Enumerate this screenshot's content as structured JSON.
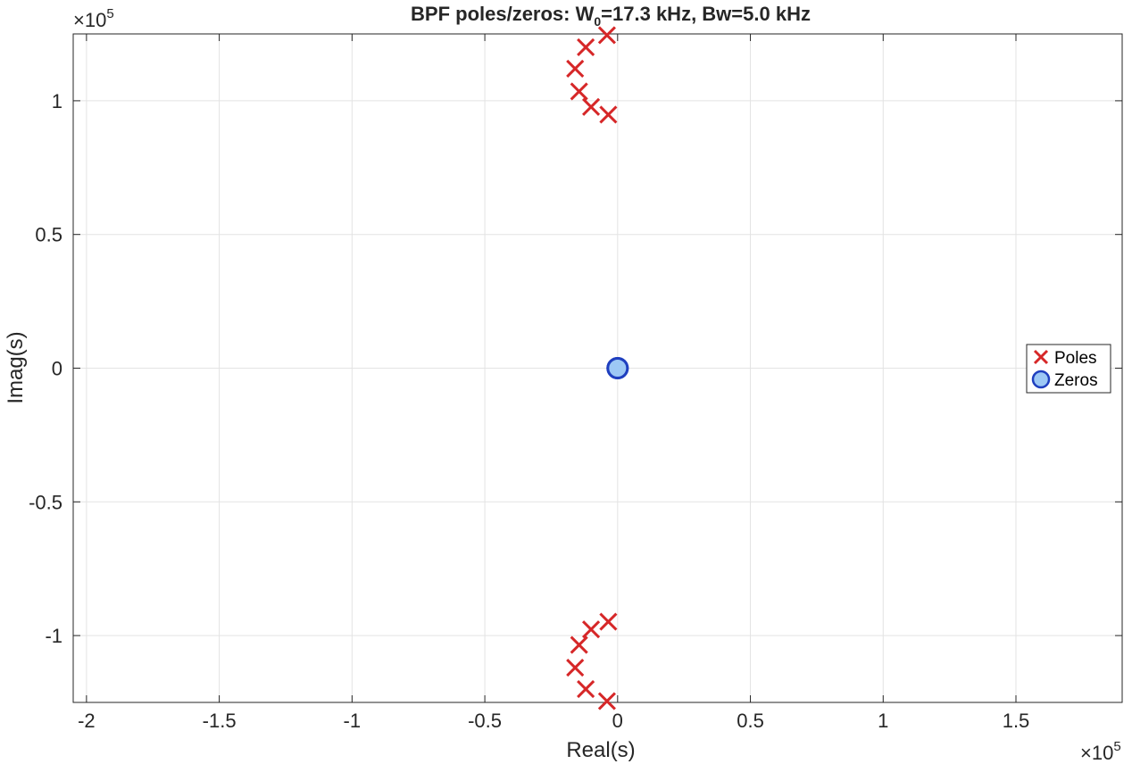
{
  "chart_data": {
    "type": "scatter",
    "title": {
      "prefix": "BPF  poles/zeros:  W",
      "subscript": "0",
      "suffix": "=17.3  kHz,  Bw=5.0  kHz"
    },
    "xlabel": "Real(s)",
    "ylabel": "Imag(s)",
    "x_exponent": {
      "base": "×10",
      "power": "5"
    },
    "y_exponent": {
      "base": "×10",
      "power": "5"
    },
    "xlim": [
      -2.05,
      1.9
    ],
    "ylim": [
      -1.25,
      1.25
    ],
    "x_ticks": [
      -2,
      -1.5,
      -1,
      -0.5,
      0,
      0.5,
      1,
      1.5
    ],
    "x_tick_labels": [
      "-2",
      "-1.5",
      "-1",
      "-0.5",
      "0",
      "0.5",
      "1",
      "1.5"
    ],
    "y_ticks": [
      -1,
      -0.5,
      0,
      0.5,
      1
    ],
    "y_tick_labels": [
      "-1",
      "-0.5",
      "0",
      "0.5",
      "1"
    ],
    "grid": true,
    "legend_position": "right",
    "series": [
      {
        "name": "Poles",
        "marker": "x",
        "color": "#d62728",
        "points": [
          {
            "x": -0.04,
            "y": 1.245
          },
          {
            "x": -0.12,
            "y": 1.2
          },
          {
            "x": -0.16,
            "y": 1.12
          },
          {
            "x": -0.145,
            "y": 1.035
          },
          {
            "x": -0.1,
            "y": 0.977
          },
          {
            "x": -0.035,
            "y": 0.948
          },
          {
            "x": -0.035,
            "y": -0.948
          },
          {
            "x": -0.1,
            "y": -0.977
          },
          {
            "x": -0.145,
            "y": -1.035
          },
          {
            "x": -0.16,
            "y": -1.12
          },
          {
            "x": -0.12,
            "y": -1.2
          },
          {
            "x": -0.04,
            "y": -1.245
          }
        ]
      },
      {
        "name": "Zeros",
        "marker": "o",
        "color": "#1f3fbf",
        "fill": "#9dc8f5",
        "points": [
          {
            "x": 0.0,
            "y": 0.0
          },
          {
            "x": 0.0,
            "y": 0.0
          }
        ]
      }
    ]
  }
}
